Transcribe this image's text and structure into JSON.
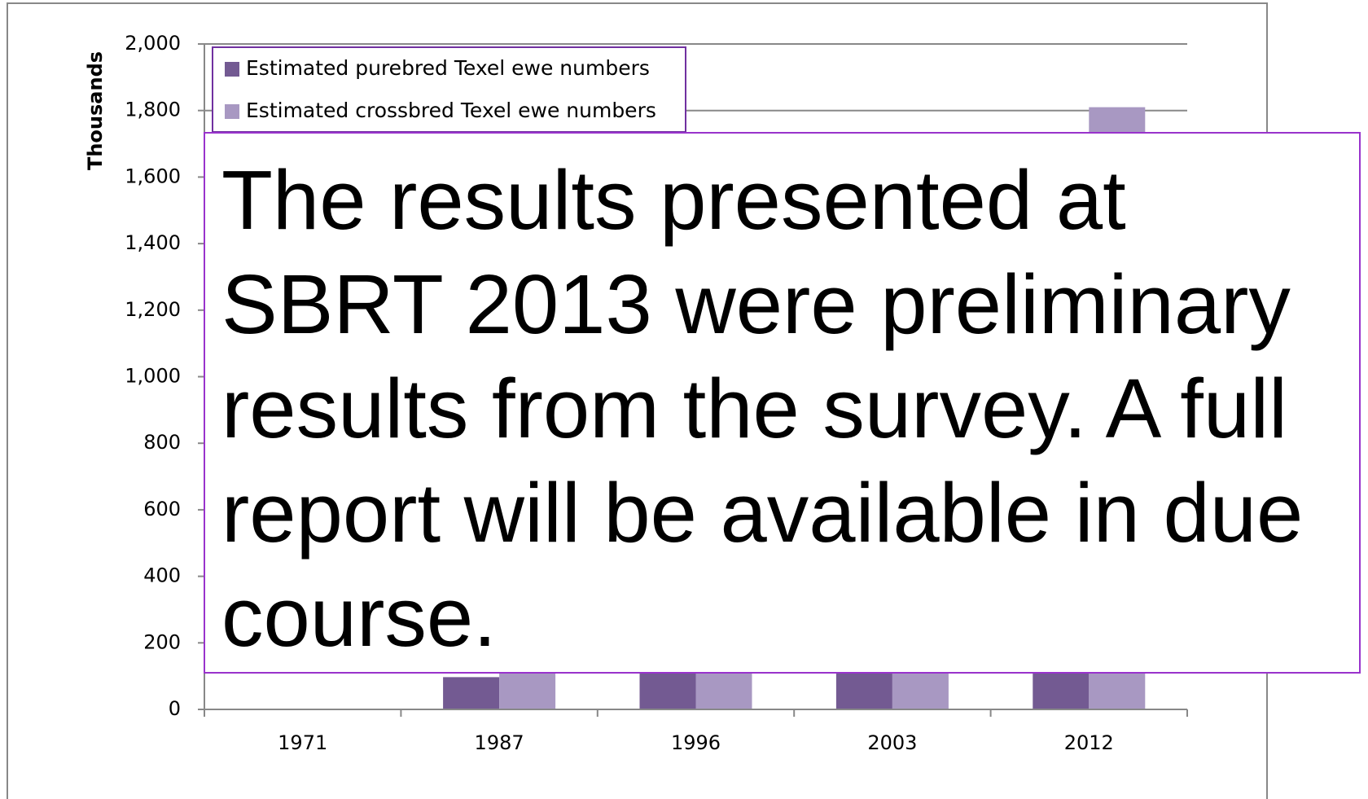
{
  "chart_data": {
    "type": "bar",
    "y_label": "Thousands",
    "categories": [
      "1971",
      "1987",
      "1996",
      "2003",
      "2012"
    ],
    "series": [
      {
        "name": "Estimated purebred Texel ewe numbers",
        "color": "#735a92",
        "values": [
          0,
          97,
          150,
          170,
          220
        ]
      },
      {
        "name": "Estimated crossbred Texel ewe numbers",
        "color": "#a898c2",
        "values": [
          0,
          400,
          700,
          1100,
          1810
        ]
      }
    ],
    "ylim": [
      0,
      2000
    ],
    "yticks": [
      0,
      200,
      400,
      600,
      800,
      {
        "value": 1000,
        "label": "1,000"
      },
      {
        "value": 1200,
        "label": "1,200"
      },
      {
        "value": 1400,
        "label": "1,400"
      },
      {
        "value": 1600,
        "label": "1,600"
      },
      {
        "value": 1800,
        "label": "1,800"
      },
      {
        "value": 2000,
        "label": "2,000"
      }
    ],
    "grid": true
  },
  "note": "The results presented at SBRT 2013 were preliminary results from the survey. A full report will be available in due course."
}
